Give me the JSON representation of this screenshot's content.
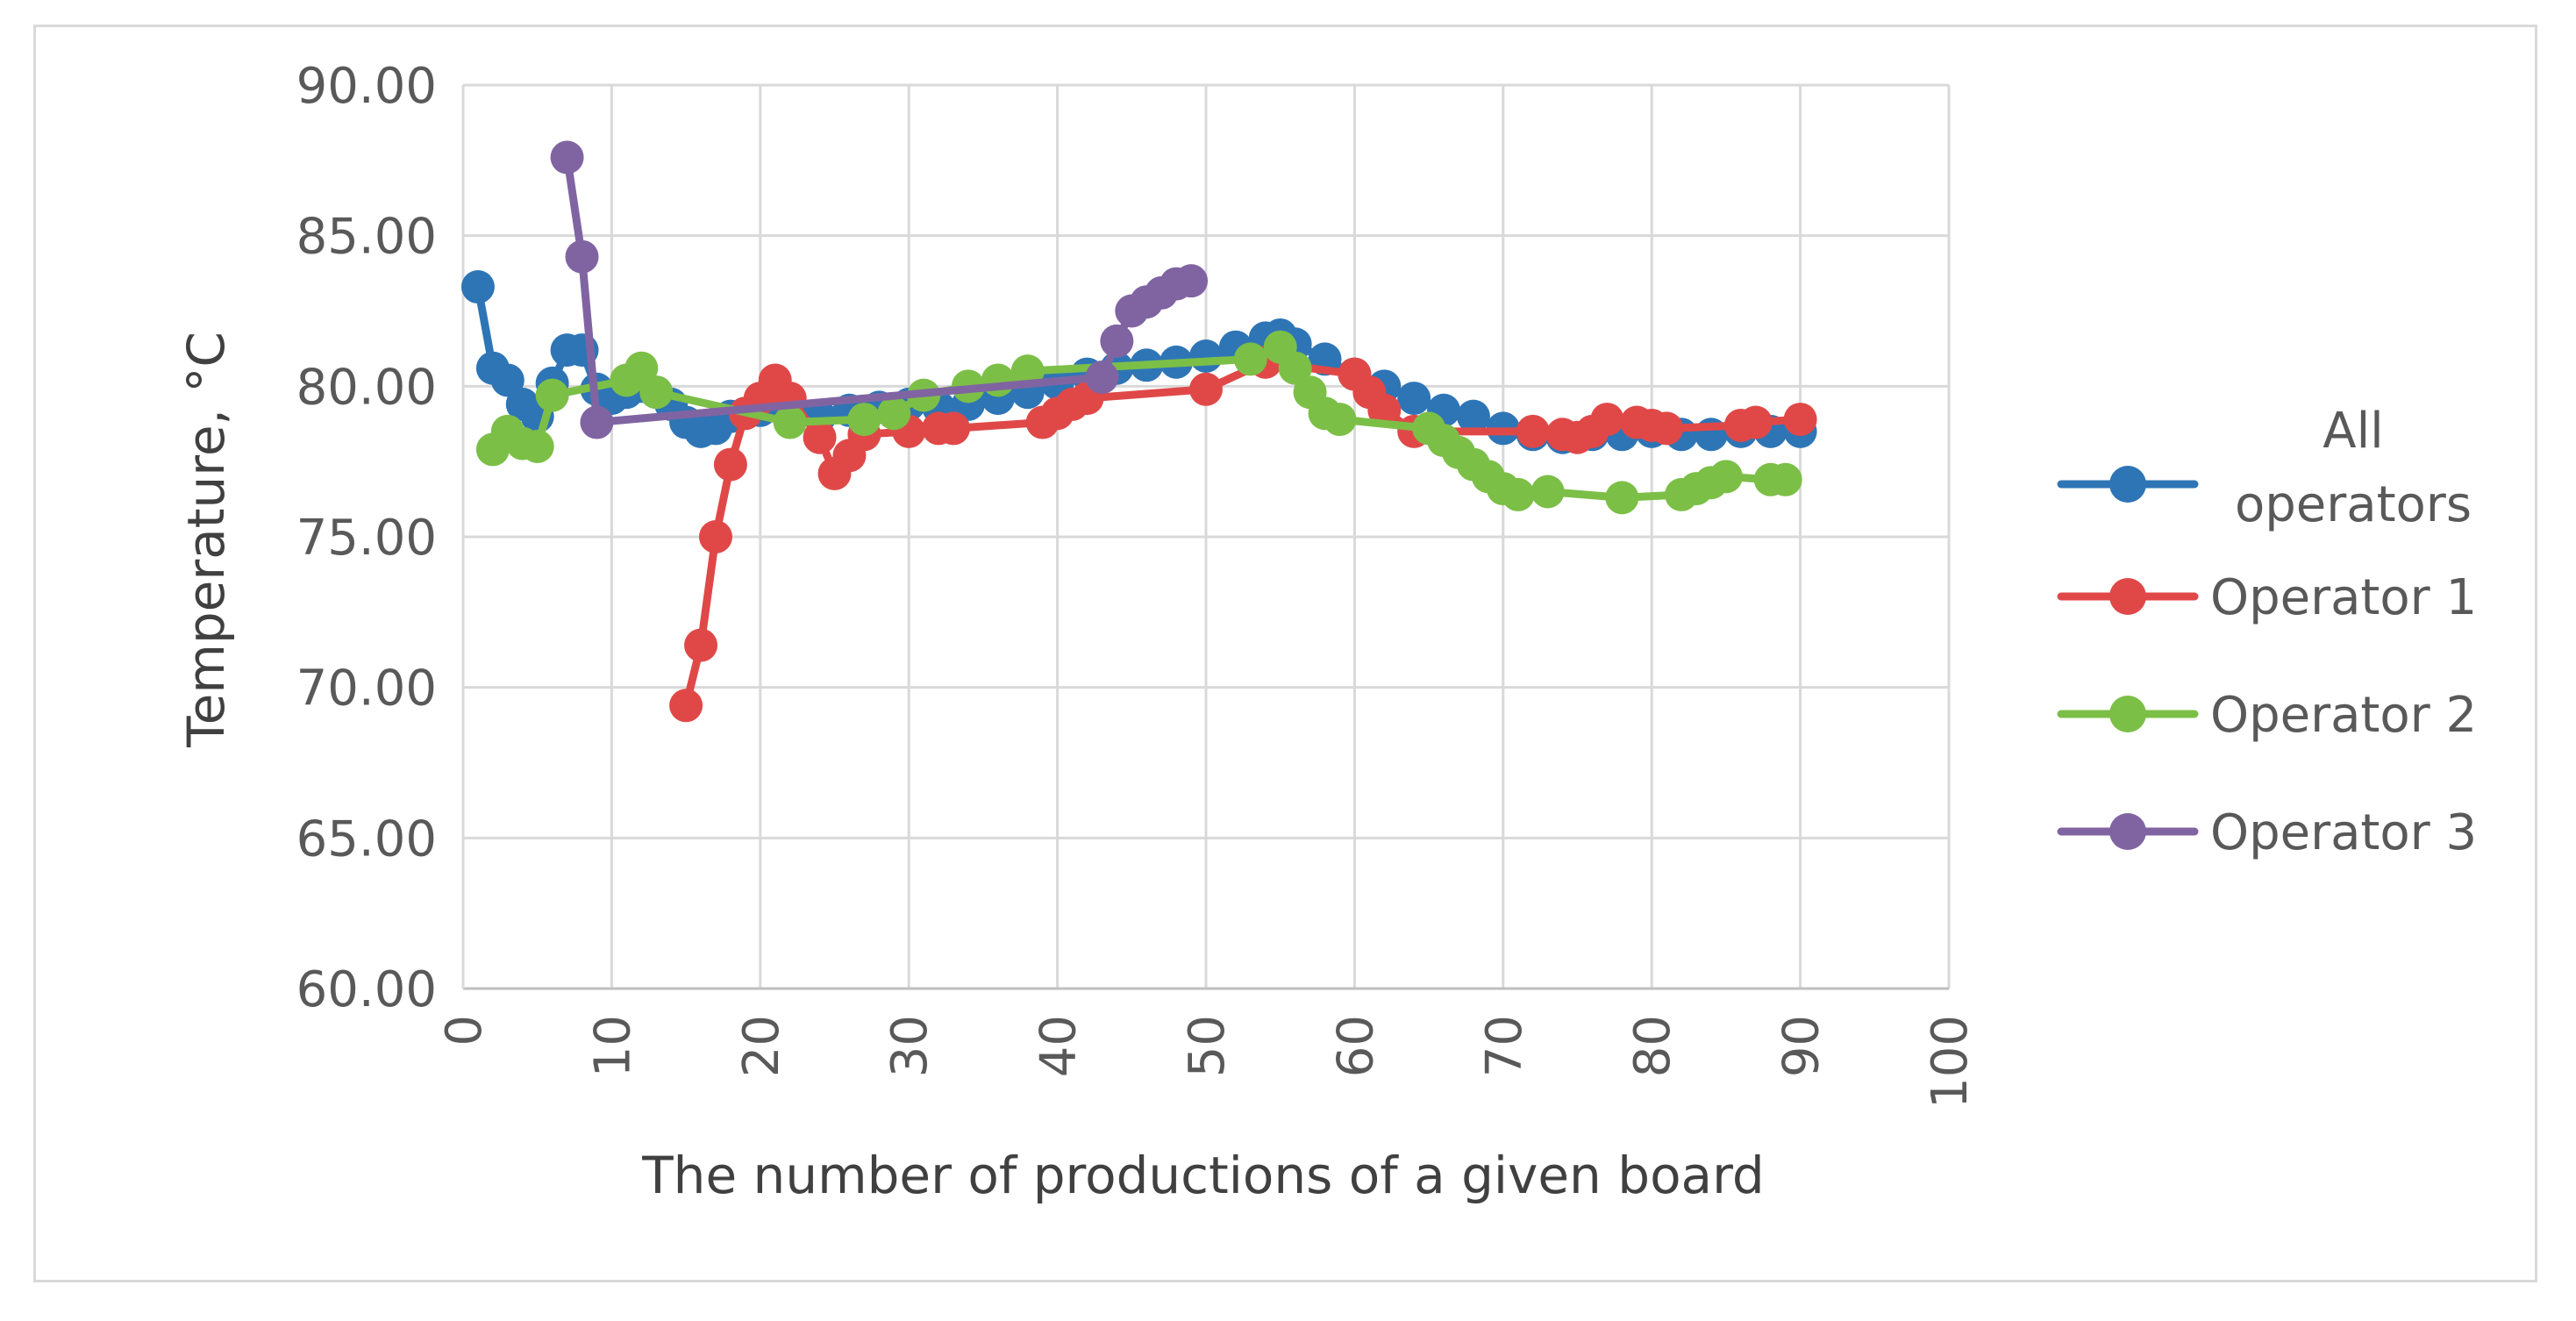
{
  "chart_data": {
    "type": "scatter",
    "title": "",
    "xlabel": "The number of productions of a given board",
    "ylabel": "Temperature, °C",
    "xlim": [
      0,
      100
    ],
    "ylim": [
      60,
      90
    ],
    "xticks": [
      0,
      10,
      20,
      30,
      40,
      50,
      60,
      70,
      80,
      90,
      100
    ],
    "yticks": [
      60,
      65,
      70,
      75,
      80,
      85,
      90
    ],
    "ytick_labels": [
      "60.00",
      "65.00",
      "70.00",
      "75.00",
      "80.00",
      "85.00",
      "90.00"
    ],
    "xtick_labels": [
      "0",
      "10",
      "20",
      "30",
      "40",
      "50",
      "60",
      "70",
      "80",
      "90",
      "100"
    ],
    "grid": true,
    "legend_position": "right",
    "series": [
      {
        "name": "All operators",
        "legend_lines": [
          "All",
          "operators"
        ],
        "color": "#2e75b6",
        "x": [
          1,
          2,
          3,
          4,
          5,
          6,
          7,
          8,
          9,
          10,
          11,
          12,
          13,
          14,
          15,
          16,
          17,
          18,
          19,
          20,
          22,
          24,
          26,
          28,
          30,
          32,
          34,
          36,
          38,
          40,
          42,
          44,
          46,
          48,
          50,
          52,
          54,
          55,
          56,
          58,
          60,
          62,
          64,
          66,
          68,
          70,
          72,
          74,
          76,
          78,
          80,
          82,
          84,
          86,
          88,
          90
        ],
        "y": [
          83.3,
          80.6,
          80.2,
          79.4,
          79.0,
          80.1,
          81.2,
          81.2,
          79.9,
          79.6,
          79.8,
          80.0,
          79.8,
          79.4,
          78.8,
          78.5,
          78.6,
          79.0,
          79.1,
          79.2,
          79.2,
          79.0,
          79.2,
          79.3,
          79.4,
          79.3,
          79.4,
          79.6,
          79.8,
          80.1,
          80.4,
          80.6,
          80.7,
          80.8,
          81.0,
          81.3,
          81.6,
          81.7,
          81.4,
          80.9,
          80.4,
          80.0,
          79.6,
          79.2,
          79.0,
          78.6,
          78.4,
          78.3,
          78.4,
          78.4,
          78.5,
          78.4,
          78.4,
          78.5,
          78.5,
          78.5
        ]
      },
      {
        "name": "Operator 1",
        "legend_lines": [
          "Operator 1"
        ],
        "color": "#e04848",
        "x": [
          15,
          16,
          17,
          18,
          19,
          20,
          21,
          22,
          24,
          25,
          26,
          27,
          30,
          32,
          33,
          39,
          40,
          41,
          42,
          50,
          54,
          60,
          61,
          62,
          64,
          72,
          74,
          75,
          76,
          77,
          79,
          80,
          81,
          86,
          87,
          90
        ],
        "y": [
          69.4,
          71.4,
          75.0,
          77.4,
          79.1,
          79.6,
          80.2,
          79.6,
          78.3,
          77.1,
          77.7,
          78.4,
          78.5,
          78.6,
          78.6,
          78.8,
          79.1,
          79.4,
          79.6,
          79.9,
          80.8,
          80.4,
          79.8,
          79.2,
          78.5,
          78.5,
          78.4,
          78.3,
          78.5,
          78.9,
          78.8,
          78.7,
          78.6,
          78.7,
          78.8,
          78.9
        ]
      },
      {
        "name": "Operator 2",
        "legend_lines": [
          "Operator 2"
        ],
        "color": "#7cbf47",
        "x": [
          2,
          3,
          4,
          5,
          6,
          11,
          12,
          13,
          22,
          27,
          29,
          31,
          34,
          36,
          38,
          53,
          55,
          56,
          57,
          58,
          59,
          65,
          66,
          67,
          68,
          69,
          70,
          71,
          73,
          78,
          82,
          83,
          84,
          85,
          88,
          89
        ],
        "y": [
          77.9,
          78.5,
          78.1,
          78.0,
          79.7,
          80.2,
          80.6,
          79.8,
          78.8,
          78.9,
          79.1,
          79.7,
          80.0,
          80.2,
          80.5,
          80.9,
          81.3,
          80.6,
          79.8,
          79.1,
          78.9,
          78.6,
          78.2,
          77.8,
          77.4,
          77.0,
          76.6,
          76.4,
          76.5,
          76.3,
          76.4,
          76.6,
          76.8,
          77.0,
          76.9,
          76.9
        ]
      },
      {
        "name": "Operator 3",
        "legend_lines": [
          "Operator 3"
        ],
        "color": "#8064a2",
        "x": [
          7,
          8,
          9,
          43,
          44,
          45,
          46,
          47,
          48,
          49
        ],
        "y": [
          87.6,
          84.3,
          78.8,
          80.3,
          81.5,
          82.5,
          82.8,
          83.1,
          83.4,
          83.5
        ]
      }
    ]
  }
}
